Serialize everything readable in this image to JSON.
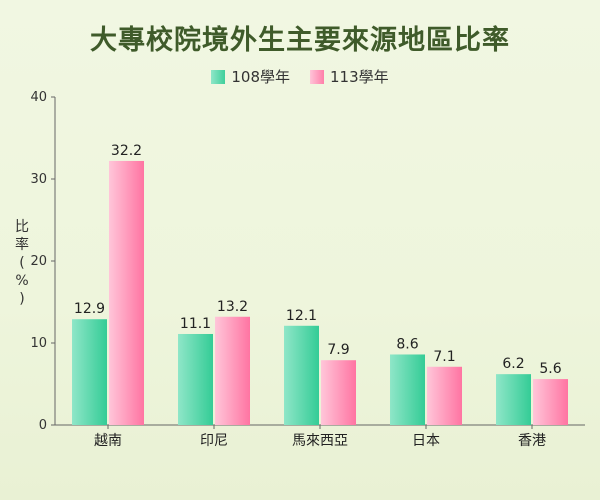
{
  "chart_data": {
    "type": "bar",
    "title": "大專校院境外生主要來源地區比率",
    "ylabel": "比率(%)",
    "categories": [
      "越南",
      "印尼",
      "馬來西亞",
      "日本",
      "香港"
    ],
    "series": [
      {
        "name": "108學年",
        "values": [
          12.9,
          11.1,
          12.1,
          8.6,
          6.2
        ],
        "color_top": "#8fe6c8",
        "color_bottom": "#34cc96"
      },
      {
        "name": "113學年",
        "values": [
          32.2,
          13.2,
          7.9,
          7.1,
          5.6
        ],
        "color_top": "#ffc6d9",
        "color_bottom": "#ff74a2"
      }
    ],
    "ylim": [
      0,
      40
    ],
    "yticks": [
      0,
      10,
      20,
      30,
      40
    ],
    "grid": false,
    "legend_position": "top"
  }
}
